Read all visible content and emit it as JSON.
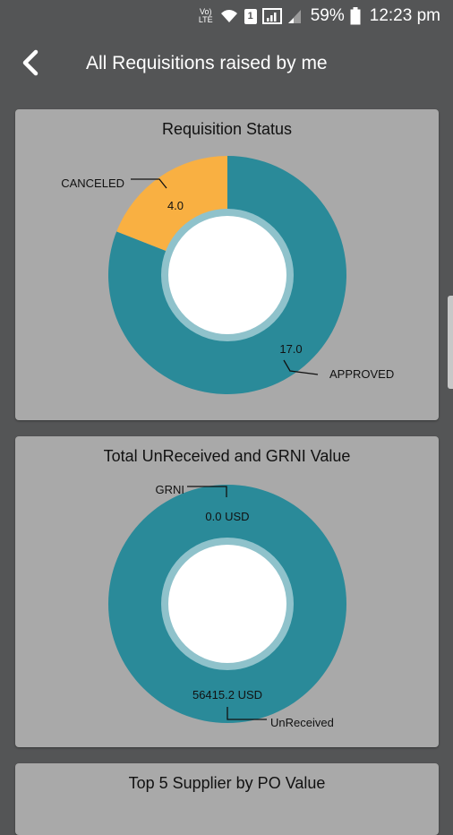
{
  "status_bar": {
    "battery": "59%",
    "time": "12:23 pm",
    "network_label": "Vo) LTE",
    "sim_label": "1"
  },
  "header": {
    "title": "All Requisitions raised by me"
  },
  "colors": {
    "teal": "#2a8a99",
    "orange": "#f9b042",
    "card_bg": "#a9a9a9",
    "app_bg": "#545556"
  },
  "cards": {
    "status": {
      "title": "Requisition Status"
    },
    "grni": {
      "title": "Total UnReceived and GRNI Value"
    },
    "supplier": {
      "title": "Top 5 Supplier by PO Value"
    }
  },
  "chart_data": [
    {
      "type": "pie",
      "title": "Requisition Status",
      "categories": [
        "APPROVED",
        "CANCELED"
      ],
      "values": [
        17.0,
        4.0
      ],
      "value_labels": [
        "17.0",
        "4.0"
      ],
      "colors": [
        "#2a8a99",
        "#f9b042"
      ]
    },
    {
      "type": "pie",
      "title": "Total UnReceived and GRNI Value",
      "categories": [
        "UnReceived",
        "GRNI"
      ],
      "values": [
        56415.2,
        0.0
      ],
      "value_labels": [
        "56415.2 USD",
        "0.0 USD"
      ],
      "colors": [
        "#2a8a99",
        "#2a8a99"
      ]
    }
  ]
}
